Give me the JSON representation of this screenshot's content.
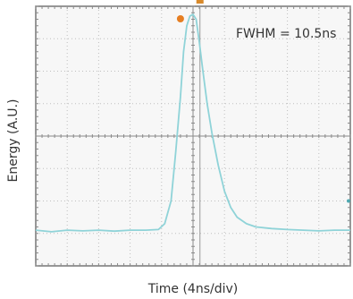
{
  "chart_data": {
    "type": "line",
    "xlabel": "Time (4ns/div)",
    "ylabel": "Energy (A.U.)",
    "annotation": "FWHM = 10.5ns",
    "x_divisions": 10,
    "y_divisions": 8,
    "xlim": [
      0,
      10
    ],
    "ylim": [
      0,
      8
    ],
    "grid": true,
    "cursor_x_div": 5.22,
    "trigger_x_div": 4.6,
    "series": [
      {
        "color": "#8fd3d8",
        "x": [
          0,
          0.5,
          1,
          1.5,
          2,
          2.5,
          3,
          3.5,
          3.9,
          4.1,
          4.3,
          4.45,
          4.6,
          4.7,
          4.8,
          4.9,
          5.0,
          5.1,
          5.2,
          5.3,
          5.45,
          5.6,
          5.8,
          6.0,
          6.2,
          6.4,
          6.7,
          7.0,
          7.5,
          8.0,
          8.5,
          9.0,
          9.5,
          10
        ],
        "y": [
          1.1,
          1.05,
          1.1,
          1.08,
          1.1,
          1.07,
          1.1,
          1.1,
          1.12,
          1.3,
          2.0,
          3.5,
          5.2,
          6.6,
          7.4,
          7.7,
          7.75,
          7.6,
          6.9,
          6.1,
          5.0,
          4.1,
          3.1,
          2.3,
          1.8,
          1.5,
          1.3,
          1.2,
          1.15,
          1.12,
          1.1,
          1.08,
          1.1,
          1.1
        ]
      }
    ]
  }
}
